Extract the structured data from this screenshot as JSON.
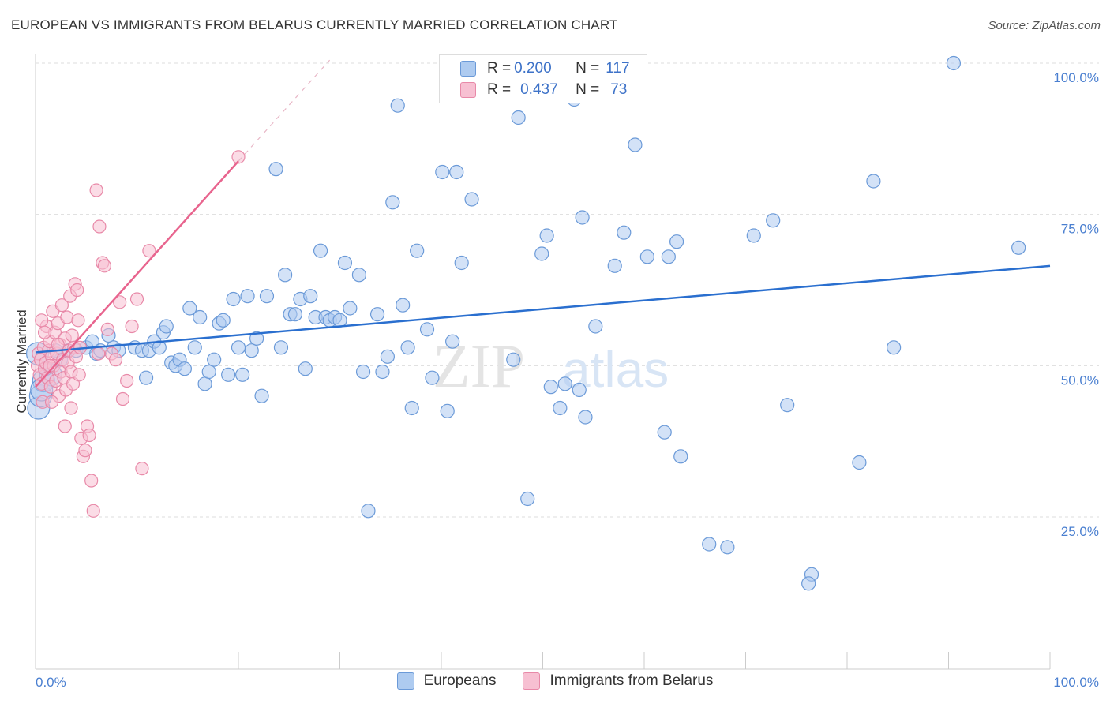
{
  "header": {
    "title": "EUROPEAN VS IMMIGRANTS FROM BELARUS CURRENTLY MARRIED CORRELATION CHART",
    "source": "Source: ZipAtlas.com"
  },
  "legend": {
    "r_label": "R =",
    "n_label": "N =",
    "rows": [
      {
        "r": "0.200",
        "n": "117"
      },
      {
        "r": "0.437",
        "n": "73"
      }
    ]
  },
  "watermark": {
    "zip": "ZIP",
    "atlas": "atlas"
  },
  "colors": {
    "blue_fill": "#aecbf0",
    "blue_stroke": "#6b9ad8",
    "blue_line": "#2a6fcf",
    "pink_fill": "#f7c0d2",
    "pink_stroke": "#e889a8",
    "pink_line": "#e8648e"
  },
  "chart_data": {
    "type": "scatter",
    "title": "EUROPEAN VS IMMIGRANTS FROM BELARUS CURRENTLY MARRIED CORRELATION CHART",
    "xlabel": "",
    "ylabel": "Currently Married",
    "xlim": [
      0,
      100
    ],
    "ylim": [
      0,
      102
    ],
    "x_tick_labels": [
      "0.0%",
      "100.0%"
    ],
    "y_ticks": [
      25,
      50,
      75,
      100
    ],
    "y_tick_labels": [
      "25.0%",
      "50.0%",
      "75.0%",
      "100.0%"
    ],
    "legend": [
      "Europeans",
      "Immigrants from Belarus"
    ],
    "series": [
      {
        "name": "Europeans",
        "r": 0.2,
        "n": 117,
        "trend": {
          "x0": 0,
          "y0": 52.2,
          "x1": 100,
          "y1": 66.5
        },
        "points": [
          [
            0.3,
            43
          ],
          [
            0.5,
            45
          ],
          [
            0.8,
            47.5
          ],
          [
            1.5,
            48.5
          ],
          [
            2.5,
            51
          ],
          [
            3.2,
            52.5
          ],
          [
            4.0,
            52.5
          ],
          [
            5.0,
            53
          ],
          [
            5.6,
            54
          ],
          [
            6.0,
            52
          ],
          [
            6.4,
            52.5
          ],
          [
            7.2,
            55
          ],
          [
            7.7,
            53
          ],
          [
            8.2,
            52.5
          ],
          [
            9.8,
            53
          ],
          [
            10.5,
            52.5
          ],
          [
            10.9,
            48
          ],
          [
            11.2,
            52.5
          ],
          [
            11.7,
            54
          ],
          [
            12.2,
            53
          ],
          [
            12.6,
            55.5
          ],
          [
            12.9,
            56.5
          ],
          [
            13.4,
            50.5
          ],
          [
            13.8,
            50
          ],
          [
            14.2,
            51
          ],
          [
            14.7,
            49.5
          ],
          [
            15.2,
            59.5
          ],
          [
            15.7,
            53
          ],
          [
            16.2,
            58
          ],
          [
            16.7,
            47
          ],
          [
            17.1,
            49
          ],
          [
            17.6,
            51
          ],
          [
            18.1,
            57
          ],
          [
            18.5,
            57.5
          ],
          [
            19.0,
            48.5
          ],
          [
            19.5,
            61
          ],
          [
            20.0,
            53
          ],
          [
            20.4,
            48.5
          ],
          [
            20.9,
            61.5
          ],
          [
            21.3,
            52.5
          ],
          [
            21.8,
            54.5
          ],
          [
            22.3,
            45
          ],
          [
            22.8,
            61.5
          ],
          [
            23.7,
            82.5
          ],
          [
            24.2,
            53
          ],
          [
            24.6,
            65
          ],
          [
            25.1,
            58.5
          ],
          [
            25.6,
            58.5
          ],
          [
            26.1,
            61
          ],
          [
            26.6,
            49.5
          ],
          [
            27.1,
            61.5
          ],
          [
            27.6,
            58
          ],
          [
            28.1,
            69
          ],
          [
            28.6,
            58
          ],
          [
            29.0,
            57.5
          ],
          [
            29.5,
            58
          ],
          [
            30.0,
            57.5
          ],
          [
            30.5,
            67
          ],
          [
            31.0,
            59.5
          ],
          [
            31.9,
            65
          ],
          [
            32.3,
            49
          ],
          [
            32.8,
            26
          ],
          [
            33.7,
            58.5
          ],
          [
            34.2,
            49
          ],
          [
            34.7,
            51.5
          ],
          [
            35.2,
            77
          ],
          [
            35.7,
            93
          ],
          [
            36.2,
            60
          ],
          [
            36.7,
            53
          ],
          [
            37.1,
            43
          ],
          [
            37.6,
            69
          ],
          [
            38.6,
            56
          ],
          [
            39.1,
            48
          ],
          [
            40.1,
            82
          ],
          [
            40.6,
            42.5
          ],
          [
            41.1,
            54
          ],
          [
            41.5,
            82
          ],
          [
            42.0,
            67
          ],
          [
            43.0,
            77.5
          ],
          [
            47.1,
            51
          ],
          [
            47.6,
            91
          ],
          [
            48.5,
            28
          ],
          [
            49.1,
            100
          ],
          [
            49.9,
            68.5
          ],
          [
            50.4,
            71.5
          ],
          [
            50.8,
            46.5
          ],
          [
            51.7,
            43
          ],
          [
            52.2,
            47
          ],
          [
            53.1,
            94
          ],
          [
            53.6,
            46
          ],
          [
            53.9,
            74.5
          ],
          [
            54.2,
            41.5
          ],
          [
            55.2,
            56.5
          ],
          [
            57.1,
            66.5
          ],
          [
            58.0,
            72
          ],
          [
            59.1,
            86.5
          ],
          [
            60.3,
            68
          ],
          [
            62.0,
            39
          ],
          [
            62.4,
            68
          ],
          [
            63.2,
            70.5
          ],
          [
            63.6,
            35
          ],
          [
            66.4,
            20.5
          ],
          [
            68.2,
            20
          ],
          [
            70.8,
            71.5
          ],
          [
            72.7,
            74
          ],
          [
            74.1,
            43.5
          ],
          [
            76.5,
            15.5
          ],
          [
            76.2,
            14
          ],
          [
            81.2,
            34
          ],
          [
            82.6,
            80.5
          ],
          [
            84.6,
            53
          ],
          [
            90.5,
            100
          ],
          [
            96.9,
            69.5
          ],
          [
            0.2,
            52
          ],
          [
            1.0,
            49.5
          ],
          [
            2.0,
            52.5
          ],
          [
            0.6,
            46
          ]
        ],
        "sizes_large": [
          [
            0.3,
            43
          ],
          [
            0.5,
            45
          ],
          [
            0.8,
            47.5
          ],
          [
            1.5,
            48.5
          ],
          [
            0.2,
            52
          ],
          [
            0.6,
            46
          ]
        ]
      },
      {
        "name": "Immigrants from Belarus",
        "r": 0.437,
        "n": 73,
        "trend": {
          "x0": 0,
          "y0": 46.5,
          "x1": 20,
          "y1": 83.8,
          "dash_to_x": 29,
          "dash_to_y": 100.5
        },
        "points": [
          [
            0.2,
            50
          ],
          [
            0.3,
            52
          ],
          [
            0.4,
            48.5
          ],
          [
            0.5,
            51
          ],
          [
            0.6,
            47
          ],
          [
            0.7,
            44
          ],
          [
            0.8,
            53
          ],
          [
            0.9,
            49.5
          ],
          [
            1.0,
            50.5
          ],
          [
            1.1,
            56.5
          ],
          [
            1.2,
            48
          ],
          [
            1.3,
            52.5
          ],
          [
            1.4,
            54
          ],
          [
            1.5,
            46.5
          ],
          [
            1.6,
            51.5
          ],
          [
            1.7,
            59
          ],
          [
            1.8,
            50
          ],
          [
            1.9,
            55.5
          ],
          [
            2.0,
            47.5
          ],
          [
            2.1,
            52
          ],
          [
            2.2,
            57
          ],
          [
            2.3,
            45
          ],
          [
            2.4,
            53.5
          ],
          [
            2.5,
            49
          ],
          [
            2.6,
            60
          ],
          [
            2.7,
            51
          ],
          [
            2.8,
            48
          ],
          [
            2.9,
            54.5
          ],
          [
            3.0,
            46
          ],
          [
            3.1,
            58
          ],
          [
            3.2,
            50.5
          ],
          [
            3.3,
            52.5
          ],
          [
            3.4,
            61.5
          ],
          [
            3.5,
            49
          ],
          [
            3.6,
            55
          ],
          [
            3.7,
            47
          ],
          [
            3.8,
            53
          ],
          [
            3.9,
            63.5
          ],
          [
            4.0,
            51.5
          ],
          [
            4.1,
            62.5
          ],
          [
            4.2,
            57.5
          ],
          [
            4.3,
            48.5
          ],
          [
            4.5,
            38
          ],
          [
            4.7,
            35
          ],
          [
            4.9,
            36
          ],
          [
            5.1,
            40
          ],
          [
            5.3,
            38.5
          ],
          [
            5.5,
            31
          ],
          [
            5.7,
            26
          ],
          [
            6.0,
            79
          ],
          [
            6.3,
            73
          ],
          [
            6.6,
            67
          ],
          [
            6.8,
            66.5
          ],
          [
            7.1,
            56
          ],
          [
            7.5,
            52
          ],
          [
            7.9,
            51
          ],
          [
            8.3,
            60.5
          ],
          [
            8.6,
            44.5
          ],
          [
            9.0,
            47.5
          ],
          [
            9.5,
            56.5
          ],
          [
            10.0,
            61
          ],
          [
            10.5,
            33
          ],
          [
            11.2,
            69
          ],
          [
            3.5,
            43
          ],
          [
            2.9,
            40
          ],
          [
            1.6,
            44
          ],
          [
            0.9,
            55.5
          ],
          [
            20.0,
            84.5
          ],
          [
            2.2,
            53.5
          ],
          [
            1.4,
            50
          ],
          [
            4.4,
            53
          ],
          [
            6.2,
            52
          ],
          [
            0.6,
            57.5
          ]
        ]
      }
    ]
  }
}
